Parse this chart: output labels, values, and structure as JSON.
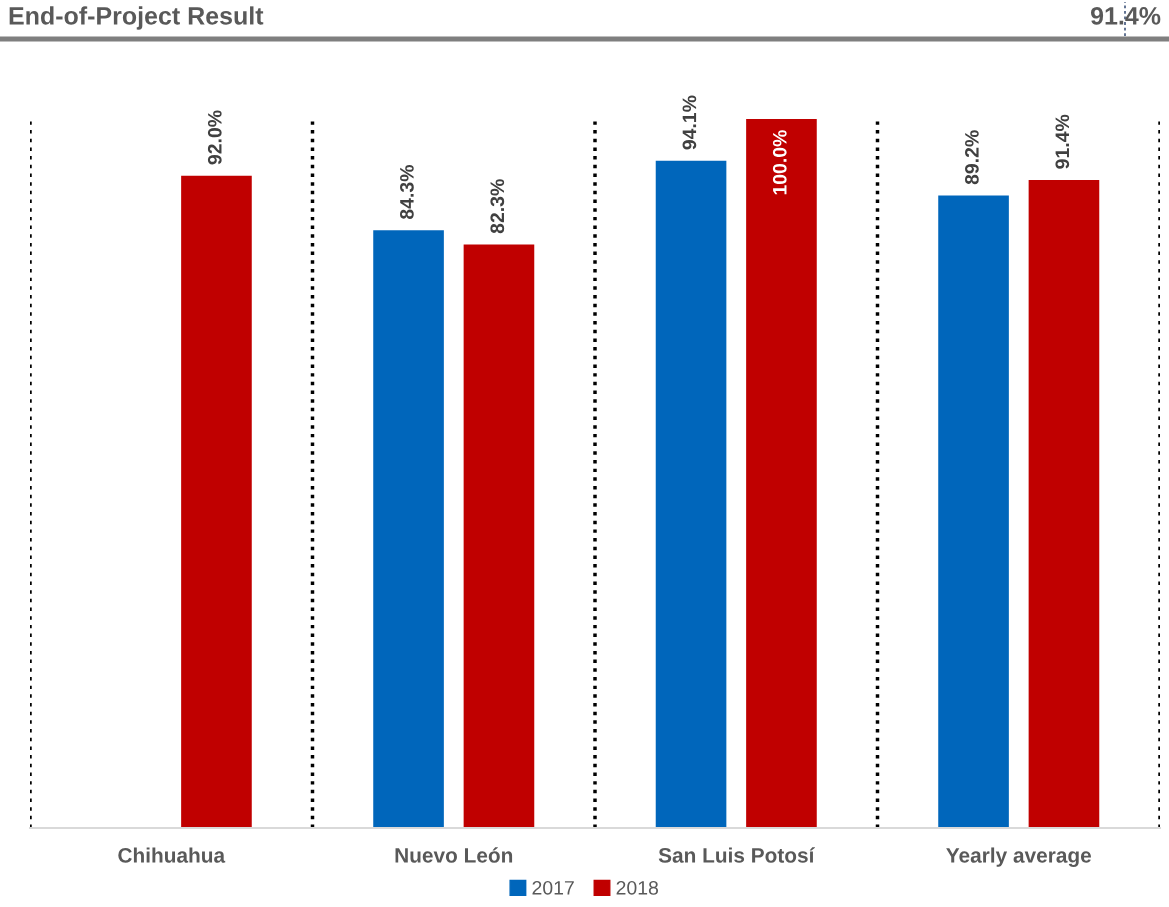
{
  "chart_data": {
    "type": "bar",
    "title": "End-of-Project Result",
    "subtitle": "91.4%",
    "categories": [
      "Chihuahua",
      "Nuevo León",
      "San Luis Potosí",
      "Yearly average"
    ],
    "series": [
      {
        "name": "2017",
        "color": "#0066bb",
        "values": [
          null,
          84.3,
          94.1,
          89.2
        ],
        "value_labels": [
          null,
          "84.3%",
          "94.1%",
          "89.2%"
        ]
      },
      {
        "name": "2018",
        "color": "#c00000",
        "values": [
          92.0,
          82.3,
          100.0,
          91.4
        ],
        "value_labels": [
          "92.0%",
          "82.3%",
          "100.0%",
          "91.4%"
        ]
      }
    ],
    "legend": "bottom",
    "grid": false,
    "tick_labels": "x"
  }
}
